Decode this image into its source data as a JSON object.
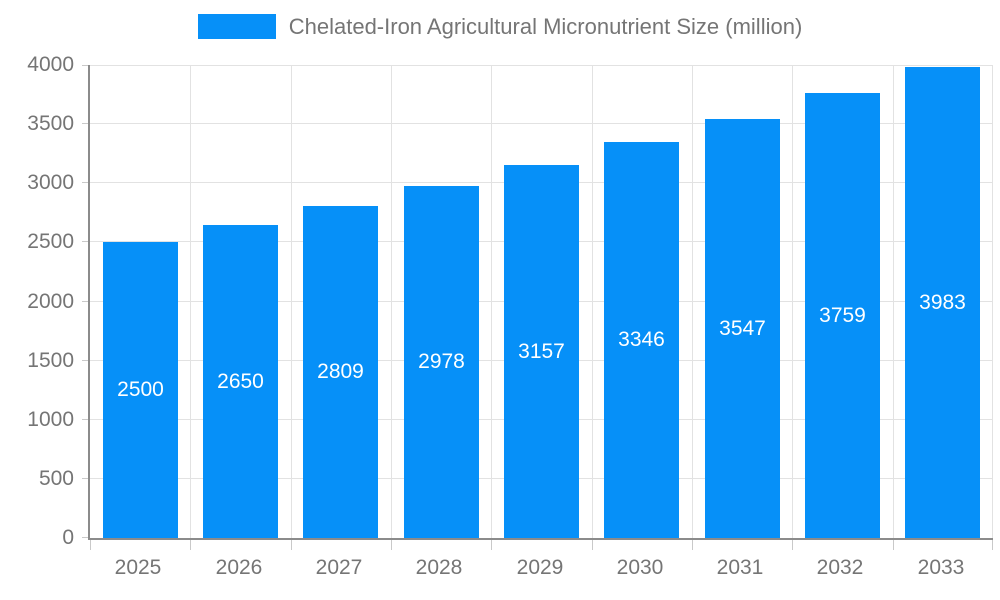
{
  "chart_data": {
    "type": "bar",
    "title": "Chelated-Iron Agricultural Micronutrient Size (million)",
    "categories": [
      "2025",
      "2026",
      "2027",
      "2028",
      "2029",
      "2030",
      "2031",
      "2032",
      "2033"
    ],
    "values": [
      2500,
      2650,
      2809,
      2978,
      3157,
      3346,
      3547,
      3759,
      3983
    ],
    "xlabel": "",
    "ylabel": "",
    "ylim": [
      0,
      4000
    ],
    "ytick_step": 500,
    "grid": true,
    "legend_position": "top",
    "bar_value_labels_inside": true
  },
  "colors": {
    "bar": "#0690f8",
    "grid": "#e2e2e2",
    "axis": "#8b8b8b",
    "tick": "#c9c9c9",
    "axis_text": "#757575",
    "legend_text": "#757575",
    "bar_label_text": "#ffffff",
    "background": "#ffffff"
  }
}
